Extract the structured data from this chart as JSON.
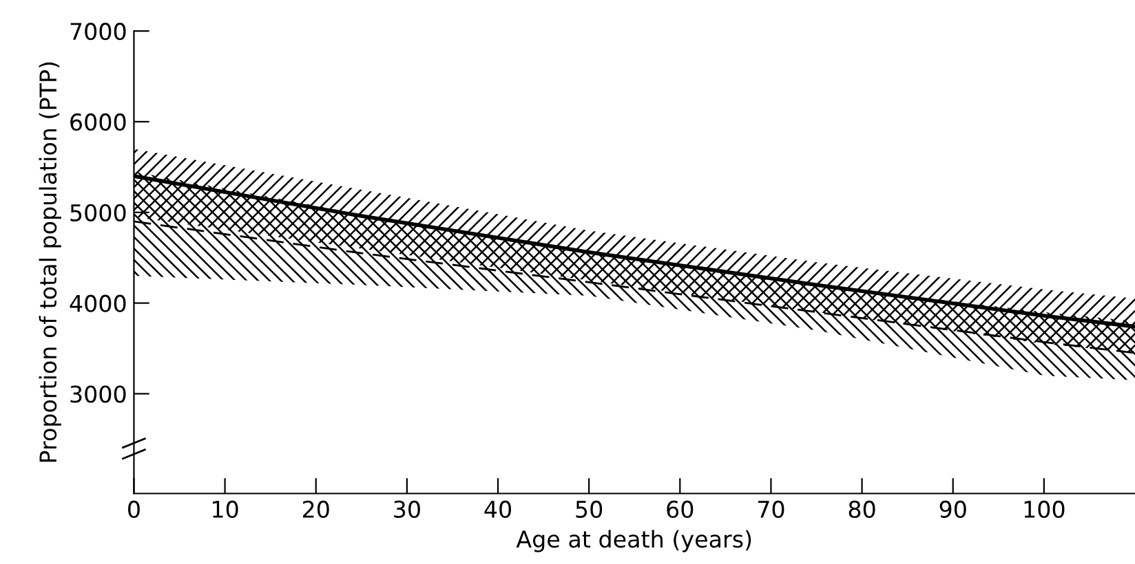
{
  "chart_data": {
    "type": "line",
    "xlabel": "Age at death (years)",
    "ylabel": "Proportion of total population (PTP)",
    "x": [
      0,
      25,
      50,
      75,
      100,
      110
    ],
    "series": [
      {
        "color": "#000000",
        "line_style": "solid",
        "values": [
          5400,
          4960,
          4560,
          4200,
          3860,
          3740
        ],
        "lower": [
          4950,
          4600,
          4250,
          3900,
          3550,
          3450
        ],
        "upper": [
          5700,
          5250,
          4800,
          4450,
          4150,
          4050
        ]
      },
      {
        "color": "#000000",
        "line_style": "dashed",
        "values": [
          4900,
          4550,
          4230,
          3900,
          3570,
          3450
        ],
        "lower": [
          4300,
          4200,
          4080,
          3700,
          3200,
          3150
        ],
        "upper": [
          5450,
          4980,
          4560,
          4200,
          3900,
          3800
        ]
      }
    ],
    "xlim": [
      0,
      110
    ],
    "xticks": [
      0,
      10,
      20,
      30,
      40,
      50,
      60,
      70,
      80,
      90,
      100
    ],
    "ylim": [
      1900,
      7000
    ],
    "yticks": [
      3000,
      4000,
      5000,
      6000,
      7000
    ],
    "grid": false,
    "legend": false,
    "marker": "none"
  }
}
